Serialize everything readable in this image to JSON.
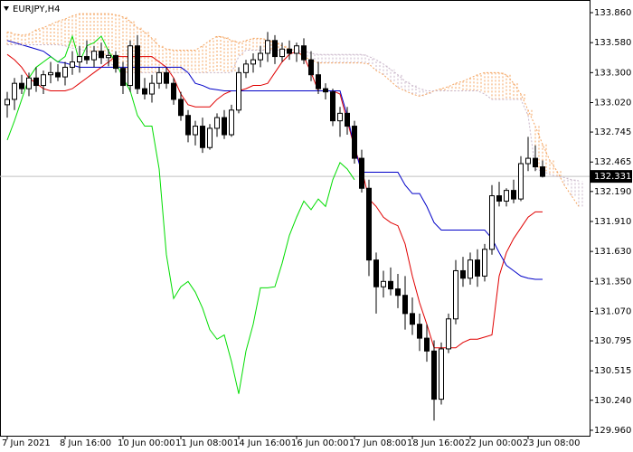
{
  "chart_data": {
    "type": "candlestick",
    "title": "EURJPY,H4",
    "categories": [
      "7 Jun 2021",
      null,
      null,
      null,
      null,
      null,
      null,
      null,
      "8 Jun 16:00",
      null,
      null,
      null,
      null,
      null,
      null,
      null,
      "10 Jun 00:00",
      null,
      null,
      null,
      null,
      null,
      null,
      null,
      "11 Jun 08:00",
      null,
      null,
      null,
      null,
      null,
      null,
      null,
      "14 Jun 16:00",
      null,
      null,
      null,
      null,
      null,
      null,
      null,
      "16 Jun 00:00",
      null,
      null,
      null,
      null,
      null,
      null,
      null,
      "17 Jun 08:00",
      null,
      null,
      null,
      null,
      null,
      null,
      null,
      "18 Jun 16:00",
      null,
      null,
      null,
      null,
      null,
      null,
      null,
      "22 Jun 00:00",
      null,
      null,
      null,
      null,
      null,
      null,
      null,
      "23 Jun 08:00",
      null,
      null,
      null,
      null,
      null,
      null,
      null
    ],
    "open": [
      133.0,
      133.05,
      133.2,
      133.15,
      133.25,
      133.18,
      133.28,
      133.3,
      133.26,
      133.35,
      133.4,
      133.45,
      133.42,
      133.5,
      133.44,
      133.46,
      133.34,
      133.18,
      133.55,
      133.15,
      133.1,
      133.2,
      133.3,
      133.2,
      133.05,
      132.9,
      132.72,
      132.8,
      132.6,
      132.78,
      132.88,
      132.72,
      132.95,
      133.3,
      133.38,
      133.42,
      133.48,
      133.6,
      133.45,
      133.52,
      133.48,
      133.55,
      133.42,
      133.28,
      133.15,
      133.12,
      132.85,
      132.92,
      132.8,
      132.5,
      132.22,
      131.55,
      131.3,
      131.35,
      131.28,
      131.22,
      131.05,
      130.95,
      130.82,
      130.7,
      130.25,
      130.72,
      131.0,
      131.45,
      131.38,
      131.55,
      131.4,
      131.65,
      132.15,
      132.1,
      132.2,
      132.12,
      132.45,
      132.5,
      132.42,
      null,
      null,
      null,
      null,
      null
    ],
    "high": [
      133.12,
      133.25,
      133.28,
      133.3,
      133.35,
      133.32,
      133.4,
      133.38,
      133.4,
      133.5,
      133.55,
      133.6,
      133.55,
      133.58,
      133.52,
      133.5,
      133.4,
      133.6,
      133.65,
      133.25,
      133.28,
      133.35,
      133.35,
      133.25,
      133.12,
      132.95,
      132.85,
      132.88,
      132.82,
      132.92,
      132.95,
      133.0,
      133.35,
      133.42,
      133.48,
      133.55,
      133.68,
      133.65,
      133.58,
      133.6,
      133.58,
      133.62,
      133.5,
      133.4,
      133.2,
      133.15,
      132.98,
      132.98,
      132.85,
      132.58,
      132.3,
      131.62,
      131.45,
      131.48,
      131.42,
      131.4,
      131.2,
      131.05,
      130.95,
      130.8,
      130.78,
      131.05,
      131.55,
      131.58,
      131.62,
      131.65,
      131.7,
      132.25,
      132.28,
      132.22,
      132.3,
      132.52,
      132.7,
      132.62,
      132.48,
      null,
      null,
      null,
      null,
      null
    ],
    "low": [
      132.88,
      132.95,
      133.1,
      133.08,
      133.12,
      133.1,
      133.2,
      133.22,
      133.18,
      133.28,
      133.3,
      133.38,
      133.35,
      133.38,
      133.36,
      133.3,
      133.1,
      133.12,
      133.1,
      133.05,
      133.02,
      133.15,
      133.15,
      133.0,
      132.85,
      132.65,
      132.62,
      132.55,
      132.58,
      132.7,
      132.68,
      132.7,
      132.92,
      133.25,
      133.3,
      133.35,
      133.4,
      133.38,
      133.4,
      133.42,
      133.4,
      133.38,
      133.22,
      133.1,
      133.05,
      132.8,
      132.7,
      132.72,
      132.45,
      132.18,
      131.4,
      131.05,
      131.2,
      131.22,
      131.1,
      130.9,
      130.85,
      130.7,
      130.6,
      130.05,
      130.2,
      130.68,
      130.95,
      131.3,
      131.32,
      131.3,
      131.35,
      131.6,
      132.05,
      132.05,
      132.08,
      132.1,
      132.38,
      132.38,
      132.32,
      null,
      null,
      null,
      null,
      null
    ],
    "close": [
      133.05,
      133.2,
      133.15,
      133.25,
      133.18,
      133.28,
      133.3,
      133.26,
      133.35,
      133.4,
      133.45,
      133.42,
      133.5,
      133.44,
      133.46,
      133.34,
      133.18,
      133.55,
      133.15,
      133.1,
      133.2,
      133.3,
      133.2,
      133.05,
      132.9,
      132.72,
      132.8,
      132.6,
      132.78,
      132.88,
      132.72,
      132.95,
      133.3,
      133.38,
      133.42,
      133.48,
      133.6,
      133.45,
      133.52,
      133.48,
      133.55,
      133.42,
      133.28,
      133.15,
      133.12,
      132.85,
      132.92,
      132.8,
      132.5,
      132.22,
      131.55,
      131.3,
      131.35,
      131.28,
      131.22,
      131.05,
      130.95,
      130.82,
      130.7,
      130.25,
      130.72,
      131.0,
      131.45,
      131.38,
      131.55,
      131.4,
      131.65,
      132.15,
      132.1,
      132.2,
      132.12,
      132.45,
      132.5,
      132.42,
      132.331,
      null,
      null,
      null,
      null,
      null
    ],
    "up_color": "#ffffff",
    "down_color": "#000000",
    "series": [
      {
        "color": "#e00000",
        "dashed": false,
        "values": [
          133.47,
          133.42,
          133.35,
          133.25,
          133.2,
          133.15,
          133.13,
          133.13,
          133.13,
          133.15,
          133.2,
          133.25,
          133.3,
          133.35,
          133.4,
          133.45,
          133.45,
          133.45,
          133.45,
          133.45,
          133.45,
          133.4,
          133.35,
          133.25,
          133.1,
          133.0,
          132.98,
          132.98,
          132.98,
          133.05,
          133.1,
          133.13,
          133.13,
          133.15,
          133.18,
          133.18,
          133.2,
          133.3,
          133.4,
          133.47,
          133.5,
          133.45,
          133.3,
          133.13,
          133.13,
          133.13,
          133.1,
          132.85,
          132.6,
          132.4,
          132.12,
          132.05,
          131.95,
          131.9,
          131.87,
          131.7,
          131.4,
          131.15,
          130.95,
          130.73,
          130.73,
          130.73,
          130.73,
          130.78,
          130.81,
          130.81,
          130.83,
          130.85,
          131.4,
          131.62,
          131.75,
          131.85,
          131.95,
          132.0,
          132.0,
          null,
          null,
          null,
          null,
          null
        ]
      },
      {
        "color": "#0000c8",
        "dashed": false,
        "values": [
          133.6,
          133.58,
          133.56,
          133.54,
          133.52,
          133.5,
          133.45,
          133.4,
          133.39,
          133.37,
          133.35,
          133.35,
          133.35,
          133.35,
          133.35,
          133.35,
          133.35,
          133.35,
          133.35,
          133.35,
          133.35,
          133.35,
          133.35,
          133.35,
          133.35,
          133.3,
          133.2,
          133.18,
          133.15,
          133.14,
          133.13,
          133.13,
          133.13,
          133.13,
          133.13,
          133.13,
          133.13,
          133.13,
          133.13,
          133.13,
          133.13,
          133.13,
          133.13,
          133.13,
          133.13,
          133.13,
          133.13,
          132.9,
          132.6,
          132.37,
          132.37,
          132.37,
          132.37,
          132.37,
          132.37,
          132.25,
          132.17,
          132.17,
          132.05,
          131.9,
          131.83,
          131.83,
          131.83,
          131.83,
          131.83,
          131.83,
          131.83,
          131.75,
          131.62,
          131.5,
          131.45,
          131.4,
          131.38,
          131.37,
          131.37,
          null,
          null,
          null,
          null,
          null
        ]
      },
      {
        "color": "#00dd00",
        "dashed": false,
        "values": [
          132.67,
          132.85,
          133.05,
          133.25,
          133.35,
          133.4,
          133.45,
          133.4,
          133.45,
          133.64,
          133.4,
          133.55,
          133.58,
          133.64,
          133.5,
          133.4,
          133.25,
          133.13,
          132.9,
          132.8,
          132.8,
          132.4,
          131.6,
          131.19,
          131.3,
          131.35,
          131.25,
          131.1,
          130.9,
          130.81,
          130.85,
          130.6,
          130.3,
          130.7,
          130.95,
          131.29,
          131.29,
          131.3,
          131.52,
          131.78,
          131.95,
          132.1,
          132.02,
          132.12,
          132.05,
          132.3,
          132.46,
          132.4,
          132.3,
          null,
          null,
          null,
          null,
          null,
          null,
          null,
          null,
          null,
          null,
          null,
          null,
          null,
          null,
          null,
          null,
          null,
          null,
          null,
          null,
          null,
          null,
          null,
          null,
          null,
          null,
          null,
          null,
          null,
          null,
          null
        ]
      },
      {
        "color": "#f4a460",
        "dashed": true,
        "values": [
          133.68,
          133.66,
          133.65,
          133.66,
          133.7,
          133.72,
          133.75,
          133.78,
          133.8,
          133.83,
          133.85,
          133.85,
          133.85,
          133.85,
          133.85,
          133.84,
          133.82,
          133.78,
          133.72,
          133.68,
          133.62,
          133.55,
          133.52,
          133.51,
          133.51,
          133.51,
          133.51,
          133.55,
          133.6,
          133.64,
          133.63,
          133.6,
          133.58,
          133.6,
          133.62,
          133.62,
          133.6,
          133.58,
          133.55,
          133.52,
          133.49,
          133.45,
          133.42,
          133.39,
          133.39,
          133.39,
          133.39,
          133.39,
          133.39,
          133.39,
          133.38,
          133.32,
          133.28,
          133.22,
          133.16,
          133.13,
          133.1,
          133.08,
          133.1,
          133.13,
          133.15,
          133.17,
          133.2,
          133.22,
          133.25,
          133.28,
          133.3,
          133.3,
          133.3,
          133.28,
          133.2,
          133.1,
          132.95,
          132.8,
          132.63,
          132.48,
          132.38,
          132.25,
          132.15,
          132.05
        ]
      },
      {
        "color": "#c8b4c8",
        "dashed": true,
        "values": [
          133.56,
          133.56,
          133.56,
          133.56,
          133.56,
          133.56,
          133.56,
          133.56,
          133.55,
          133.53,
          133.52,
          133.5,
          133.48,
          133.45,
          133.4,
          133.35,
          133.3,
          133.3,
          133.3,
          133.3,
          133.3,
          133.3,
          133.3,
          133.3,
          133.3,
          133.3,
          133.3,
          133.3,
          133.3,
          133.3,
          133.3,
          133.3,
          133.45,
          133.51,
          133.51,
          133.51,
          133.51,
          133.51,
          133.51,
          133.51,
          133.51,
          133.5,
          133.48,
          133.47,
          133.47,
          133.47,
          133.47,
          133.47,
          133.47,
          133.47,
          133.45,
          133.42,
          133.38,
          133.33,
          133.28,
          133.22,
          133.18,
          133.15,
          133.13,
          133.13,
          133.13,
          133.13,
          133.13,
          133.13,
          133.13,
          133.13,
          133.1,
          133.05,
          133.05,
          133.05,
          133.05,
          133.05,
          132.9,
          132.4,
          132.38,
          132.35,
          132.33,
          132.32,
          132.3,
          132.29
        ]
      }
    ],
    "cloud_hatch": true,
    "last_price": 132.331,
    "last_price_line_color": "#c0c0c0",
    "ylim": [
      129.909,
      133.936
    ],
    "yticks": [
      {
        "value": 133.86,
        "label": "133.860"
      },
      {
        "value": 133.58,
        "label": "133.580"
      },
      {
        "value": 133.3,
        "label": "133.300"
      },
      {
        "value": 133.02,
        "label": "133.020"
      },
      132.745,
      132.465,
      {
        "value": 132.19,
        "label": "132.190"
      },
      {
        "value": 131.91,
        "label": "131.910"
      },
      {
        "value": 131.63,
        "label": "131.630"
      },
      {
        "value": 131.35,
        "label": "131.350"
      },
      {
        "value": 131.07,
        "label": "131.070"
      },
      130.795,
      130.515,
      {
        "value": 130.24,
        "label": "130.240"
      },
      {
        "value": 129.96,
        "label": "129.960"
      }
    ]
  }
}
